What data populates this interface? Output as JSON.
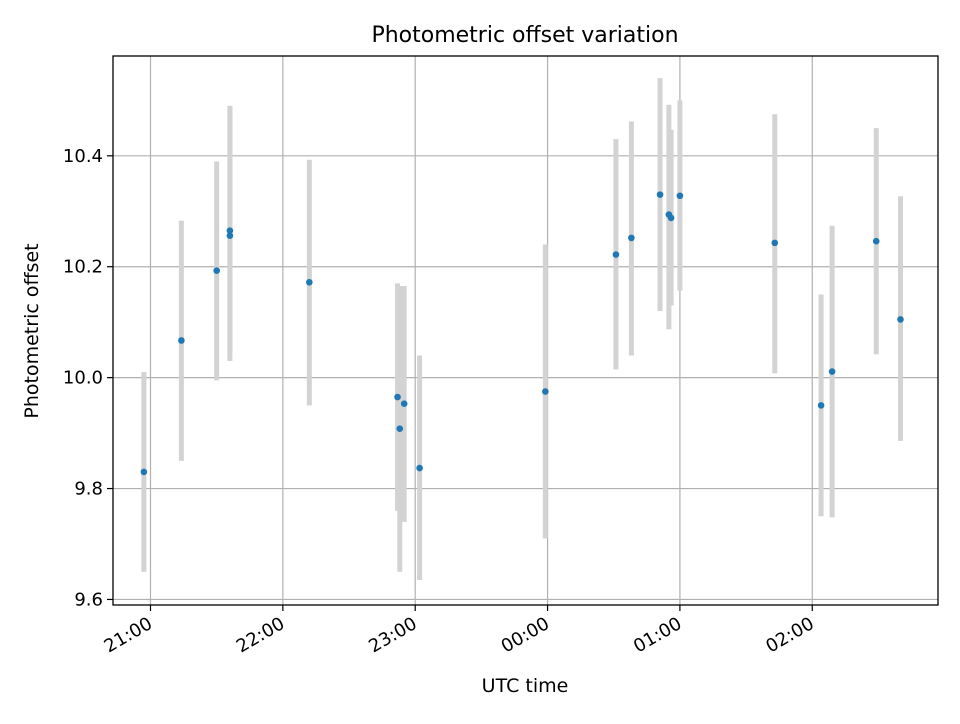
{
  "chart_data": {
    "type": "scatter",
    "title": "Photometric offset variation",
    "xlabel": "UTC time",
    "ylabel": "Photometric offset",
    "x_tick_labels": [
      "21:00",
      "22:00",
      "23:00",
      "00:00",
      "01:00",
      "02:00"
    ],
    "x_tick_times": [
      "2000-01-01T21:00",
      "2000-01-01T22:00",
      "2000-01-01T23:00",
      "2000-01-02T00:00",
      "2000-01-02T01:00",
      "2000-01-02T02:00"
    ],
    "xlim": [
      "2000-01-01T20:43",
      "2000-01-02T02:57"
    ],
    "y_ticks": [
      9.6,
      9.8,
      10.0,
      10.2,
      10.4
    ],
    "y_tick_labels": [
      "9.6",
      "9.8",
      "10.0",
      "10.2",
      "10.4"
    ],
    "ylim": [
      9.59,
      10.58
    ],
    "grid": true,
    "colors": {
      "point": "#1f77b4",
      "errorbar": "#d3d3d3",
      "grid": "#b0b0b0",
      "axes": "#000000"
    },
    "points": [
      {
        "x": "2000-01-01T20:57",
        "y": 9.83,
        "low": 9.65,
        "high": 10.01
      },
      {
        "x": "2000-01-01T21:14",
        "y": 10.067,
        "low": 9.85,
        "high": 10.283
      },
      {
        "x": "2000-01-01T21:30",
        "y": 10.193,
        "low": 9.995,
        "high": 10.39
      },
      {
        "x": "2000-01-01T21:36",
        "y": 10.256,
        "low": 10.03,
        "high": 10.49
      },
      {
        "x": "2000-01-01T21:36",
        "y": 10.265,
        "low": 10.04,
        "high": 10.49
      },
      {
        "x": "2000-01-01T22:12",
        "y": 10.172,
        "low": 9.95,
        "high": 10.393
      },
      {
        "x": "2000-01-01T22:52",
        "y": 9.965,
        "low": 9.76,
        "high": 10.17
      },
      {
        "x": "2000-01-01T22:53",
        "y": 9.908,
        "low": 9.65,
        "high": 10.165
      },
      {
        "x": "2000-01-01T22:55",
        "y": 9.953,
        "low": 9.74,
        "high": 10.165
      },
      {
        "x": "2000-01-01T23:02",
        "y": 9.837,
        "low": 9.635,
        "high": 10.04
      },
      {
        "x": "2000-01-01T23:59",
        "y": 9.975,
        "low": 9.71,
        "high": 10.24
      },
      {
        "x": "2000-01-02T00:31",
        "y": 10.222,
        "low": 10.015,
        "high": 10.43
      },
      {
        "x": "2000-01-02T00:38",
        "y": 10.252,
        "low": 10.04,
        "high": 10.462
      },
      {
        "x": "2000-01-02T00:51",
        "y": 10.33,
        "low": 10.12,
        "high": 10.54
      },
      {
        "x": "2000-01-02T00:55",
        "y": 10.294,
        "low": 10.087,
        "high": 10.492
      },
      {
        "x": "2000-01-02T00:56",
        "y": 10.288,
        "low": 10.13,
        "high": 10.447
      },
      {
        "x": "2000-01-02T01:00",
        "y": 10.328,
        "low": 10.157,
        "high": 10.5
      },
      {
        "x": "2000-01-02T01:43",
        "y": 10.243,
        "low": 10.008,
        "high": 10.475
      },
      {
        "x": "2000-01-02T02:04",
        "y": 9.95,
        "low": 9.75,
        "high": 10.15
      },
      {
        "x": "2000-01-02T02:09",
        "y": 10.011,
        "low": 9.748,
        "high": 10.274
      },
      {
        "x": "2000-01-02T02:29",
        "y": 10.246,
        "low": 10.042,
        "high": 10.45
      },
      {
        "x": "2000-01-02T02:40",
        "y": 10.105,
        "low": 9.886,
        "high": 10.327
      }
    ]
  }
}
